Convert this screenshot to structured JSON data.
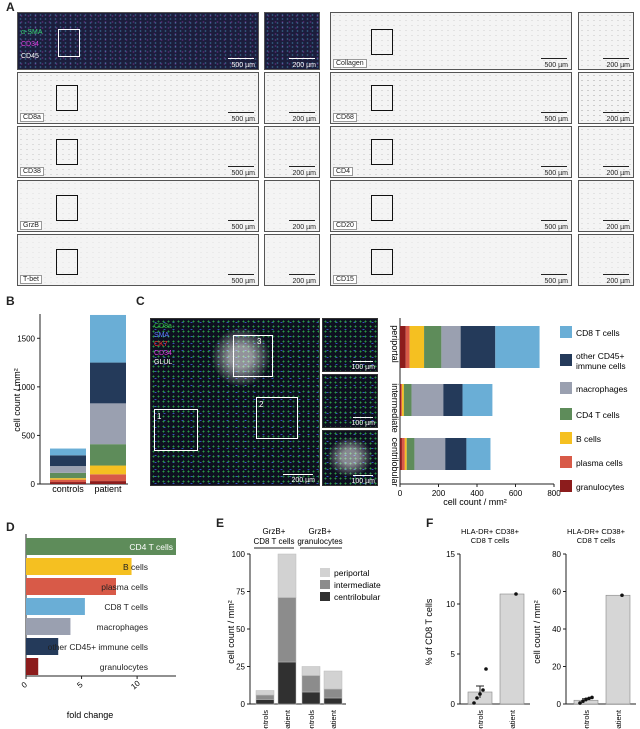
{
  "panels": {
    "a": "A",
    "b": "B",
    "c": "C",
    "d": "D",
    "e": "E",
    "f": "F"
  },
  "panel_a": {
    "overview_channels": [
      "α-SMA",
      "CD34",
      "CD45"
    ],
    "rows_left": [
      "CD8a",
      "CD38",
      "GrzB",
      "T-bet"
    ],
    "rows_right": [
      "Collagen",
      "CD68",
      "CD4",
      "CD20",
      "CD15"
    ],
    "scale_big": "500 µm",
    "scale_small": "200 µm"
  },
  "panel_c_image": {
    "channels": [
      {
        "name": "CD8a",
        "color": "#36c24a"
      },
      {
        "name": "SMA",
        "color": "#3a5cff"
      },
      {
        "name": "CK7",
        "color": "#ff3030"
      },
      {
        "name": "CD34",
        "color": "#e040e0"
      },
      {
        "name": "GLUL",
        "color": "#ffffff"
      }
    ],
    "roi_labels": [
      "1",
      "2",
      "3"
    ],
    "scale_main": "200 µm",
    "scale_zoom": "100 µm"
  },
  "legend": [
    {
      "name": "CD8 T cells",
      "color": "#6aaed6"
    },
    {
      "name": "other CD45+ immune cells",
      "color": "#243a5a"
    },
    {
      "name": "macrophages",
      "color": "#9aa0b0"
    },
    {
      "name": "CD4 T cells",
      "color": "#5e8c5a"
    },
    {
      "name": "B cells",
      "color": "#f5c021"
    },
    {
      "name": "plasma cells",
      "color": "#d85a48"
    },
    {
      "name": "granulocytes",
      "color": "#8c1c1c"
    }
  ],
  "chart_data": [
    {
      "type": "bar",
      "id": "B",
      "stacked": true,
      "categories": [
        "controls",
        "patient"
      ],
      "ylabel": "cell count / mm²",
      "ylim": [
        0,
        1750
      ],
      "yticks": [
        0,
        500,
        1000,
        1500
      ],
      "series": [
        {
          "name": "granulocytes",
          "values": [
            20,
            30
          ]
        },
        {
          "name": "plasma cells",
          "values": [
            25,
            70
          ]
        },
        {
          "name": "B cells",
          "values": [
            15,
            90
          ]
        },
        {
          "name": "CD4 T cells",
          "values": [
            55,
            220
          ]
        },
        {
          "name": "macrophages",
          "values": [
            70,
            420
          ]
        },
        {
          "name": "other CD45+ immune cells",
          "values": [
            110,
            420
          ]
        },
        {
          "name": "CD8 T cells",
          "values": [
            70,
            490
          ]
        }
      ]
    },
    {
      "type": "bar",
      "id": "C",
      "orientation": "horizontal",
      "stacked": true,
      "categories": [
        "periportal",
        "intermediate",
        "centrilobular"
      ],
      "xlabel": "cell count / mm²",
      "xlim": [
        0,
        800
      ],
      "xticks": [
        0,
        200,
        400,
        600,
        800
      ],
      "series": [
        {
          "name": "granulocytes",
          "values": [
            30,
            5,
            10
          ]
        },
        {
          "name": "plasma cells",
          "values": [
            20,
            5,
            15
          ]
        },
        {
          "name": "B cells",
          "values": [
            75,
            10,
            10
          ]
        },
        {
          "name": "CD4 T cells",
          "values": [
            90,
            40,
            40
          ]
        },
        {
          "name": "macrophages",
          "values": [
            100,
            165,
            160
          ]
        },
        {
          "name": "other CD45+ immune cells",
          "values": [
            180,
            100,
            110
          ]
        },
        {
          "name": "CD8 T cells",
          "values": [
            230,
            155,
            125
          ]
        }
      ]
    },
    {
      "type": "bar",
      "id": "D",
      "orientation": "horizontal",
      "categories": [
        "CD4 T cells",
        "B cells",
        "plasma cells",
        "CD8 T cells",
        "macrophages",
        "other CD45+ immune cells",
        "granulocytes"
      ],
      "values": [
        13.5,
        9.5,
        8.1,
        5.3,
        4.0,
        2.9,
        1.1
      ],
      "xlabel": "fold change",
      "xlim": [
        0,
        13.5
      ],
      "xticks": [
        0,
        5,
        10
      ]
    },
    {
      "type": "bar",
      "id": "E",
      "stacked": true,
      "groups": [
        "GrzB+ CD8 T cells",
        "GrzB+ granulocytes"
      ],
      "categories": [
        "controls",
        "patient",
        "controls",
        "patient"
      ],
      "ylabel": "cell count / mm²",
      "ylim": [
        0,
        100
      ],
      "yticks": [
        0,
        25,
        50,
        75,
        100
      ],
      "series": [
        {
          "name": "centrilobular",
          "values": [
            3,
            28,
            8,
            4
          ]
        },
        {
          "name": "intermediate",
          "values": [
            3,
            43,
            11,
            6
          ]
        },
        {
          "name": "periportal",
          "values": [
            3,
            29,
            6,
            12
          ]
        }
      ]
    },
    {
      "type": "bar",
      "id": "F1",
      "title": "HLA-DR+ CD38+ CD8 T cells",
      "categories": [
        "controls",
        "patient"
      ],
      "values": [
        1.2,
        11.0
      ],
      "error": [
        0.6,
        0
      ],
      "points": [
        [
          0.1,
          0.6,
          1.0,
          1.4,
          3.5
        ],
        [
          11.0
        ]
      ],
      "ylabel": "% of CD8 T cells",
      "ylim": [
        0,
        15
      ],
      "yticks": [
        0,
        5,
        10,
        15
      ]
    },
    {
      "type": "bar",
      "id": "F2",
      "title": "HLA-DR+ CD38+ CD8 T cells",
      "categories": [
        "controls",
        "patient"
      ],
      "values": [
        2,
        58
      ],
      "error": [
        0.8,
        0
      ],
      "points": [
        [
          0.5,
          1.5,
          2.5,
          3.0,
          3.5
        ],
        [
          58
        ]
      ],
      "ylabel": "cell count / mm²",
      "ylim": [
        0,
        80
      ],
      "yticks": [
        0,
        20,
        40,
        60,
        80
      ]
    }
  ]
}
